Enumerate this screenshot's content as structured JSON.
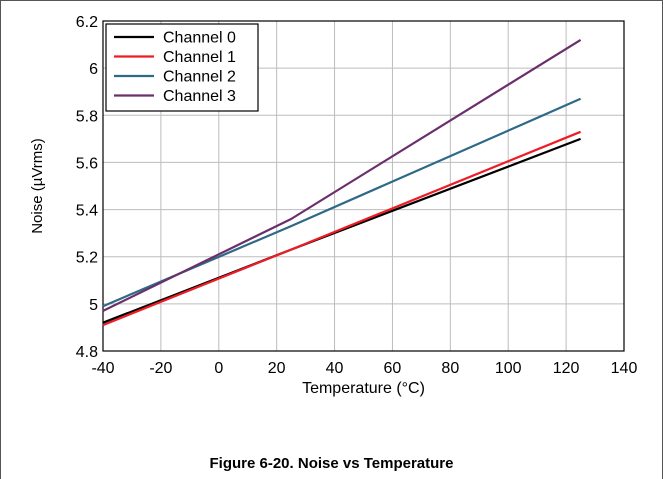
{
  "caption": "Figure 6-20. Noise vs Temperature",
  "chart_data": {
    "type": "line",
    "xlabel": "Temperature (°C)",
    "ylabel": "Noise (µVrms)",
    "xlim": [
      -40,
      140
    ],
    "ylim": [
      4.8,
      6.2
    ],
    "xticks": [
      "-40",
      "-20",
      "0",
      "20",
      "40",
      "60",
      "80",
      "100",
      "120",
      "140"
    ],
    "yticks": [
      "4.8",
      "5",
      "5.2",
      "5.4",
      "5.6",
      "5.8",
      "6",
      "6.2"
    ],
    "xtick_values": [
      -40,
      -20,
      0,
      20,
      40,
      60,
      80,
      100,
      120,
      140
    ],
    "ytick_values": [
      4.8,
      5.0,
      5.2,
      5.4,
      5.6,
      5.8,
      6.0,
      6.2
    ],
    "grid": true,
    "legend": "top-left",
    "series": [
      {
        "name": "Channel 0",
        "color": "#000000",
        "x": [
          -40,
          25,
          125
        ],
        "y": [
          4.92,
          5.23,
          5.7
        ]
      },
      {
        "name": "Channel 1",
        "color": "#ee1c25",
        "x": [
          -40,
          25,
          125
        ],
        "y": [
          4.91,
          5.23,
          5.73
        ]
      },
      {
        "name": "Channel 2",
        "color": "#2e6a86",
        "x": [
          -40,
          25,
          125
        ],
        "y": [
          4.99,
          5.33,
          5.87
        ]
      },
      {
        "name": "Channel 3",
        "color": "#6b2f6b",
        "x": [
          -40,
          25,
          125
        ],
        "y": [
          4.97,
          5.36,
          6.12
        ]
      }
    ]
  }
}
